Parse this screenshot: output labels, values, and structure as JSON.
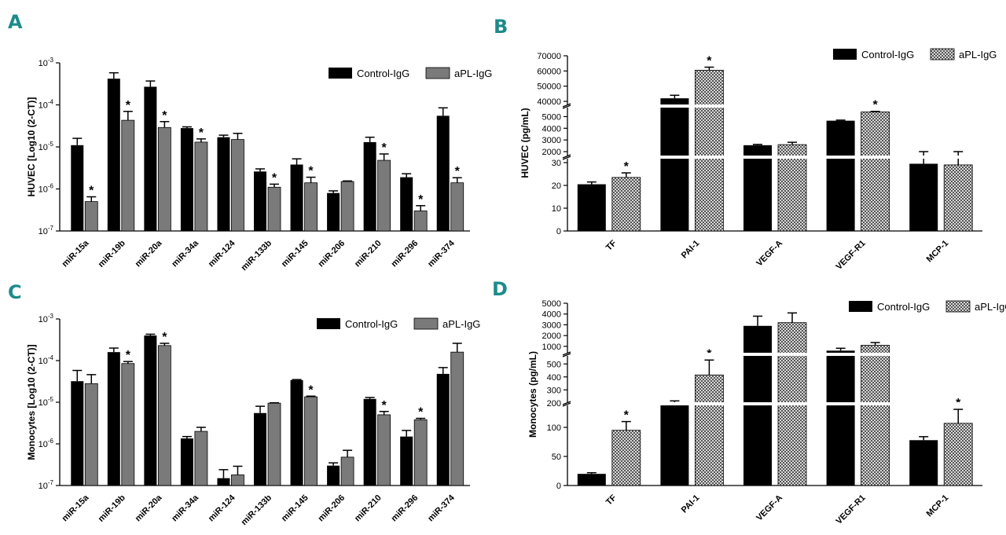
{
  "legend": {
    "control": "Control-IgG",
    "apl": "aPL-IgG"
  },
  "colors": {
    "control": "#000000",
    "apl_log": "#7a7a7a",
    "apl_pattern_bg": "#d8d8d8",
    "letter": "#1e8b8b"
  },
  "panels": {
    "A": {
      "letter": "A",
      "ylabel": "HUVEC [Log10 (2-CT)]"
    },
    "B": {
      "letter": "B",
      "ylabel": "HUVEC (pg/mL)"
    },
    "C": {
      "letter": "C",
      "ylabel": "Monocytes [Log10 (2-CT)]"
    },
    "D": {
      "letter": "D",
      "ylabel": "Monocytes (pg/mL)"
    }
  },
  "chart_data": [
    {
      "id": "A",
      "type": "bar",
      "scale": "log",
      "ylabel": "HUVEC [Log10 (2^-CT)]",
      "ylim": [
        1e-07,
        0.001
      ],
      "yticks": [
        "10-7",
        "10-6",
        "10-5",
        "10-4",
        "10-3"
      ],
      "categories": [
        "miR-15a",
        "miR-19b",
        "miR-20a",
        "miR-34a",
        "miR-124",
        "miR-133b",
        "miR-145",
        "miR-206",
        "miR-210",
        "miR-296",
        "miR-374"
      ],
      "series": [
        {
          "name": "Control-IgG",
          "values": [
            1.1e-05,
            0.00042,
            0.00027,
            2.8e-05,
            1.7e-05,
            2.6e-06,
            3.8e-06,
            8e-07,
            1.3e-05,
            1.9e-06,
            5.5e-05
          ],
          "errors": [
            1.6e-05,
            0.00058,
            0.00037,
            3e-05,
            1.9e-05,
            3e-06,
            5.2e-06,
            9e-07,
            1.7e-05,
            2.3e-06,
            8.5e-05
          ]
        },
        {
          "name": "aPL-IgG",
          "values": [
            5e-07,
            4.3e-05,
            2.9e-05,
            1.3e-05,
            1.5e-05,
            1.1e-06,
            1.4e-06,
            1.5e-06,
            4.8e-06,
            3e-07,
            1.4e-06
          ],
          "errors": [
            6.5e-07,
            7e-05,
            4e-05,
            1.55e-05,
            2.1e-05,
            1.3e-06,
            1.9e-06,
            1.55e-06,
            6.8e-06,
            4e-07,
            1.85e-06
          ],
          "significant": [
            true,
            true,
            true,
            true,
            false,
            true,
            true,
            false,
            true,
            true,
            true
          ]
        }
      ]
    },
    {
      "id": "B",
      "type": "bar",
      "scale": "broken-linear",
      "ylabel": "HUVEC (pg/mL)",
      "segments": [
        {
          "range": [
            0,
            30
          ],
          "ticks": [
            0,
            10,
            20,
            30
          ]
        },
        {
          "range": [
            2000,
            5500
          ],
          "ticks": [
            2000,
            3000,
            4000,
            5000
          ]
        },
        {
          "range": [
            40000,
            70000
          ],
          "ticks": [
            40000,
            50000,
            60000,
            70000
          ]
        }
      ],
      "categories": [
        "TF",
        "PAI-1",
        "VEGF-A",
        "VEGF-R1",
        "MCP-1"
      ],
      "series": [
        {
          "name": "Control-IgG",
          "values": [
            20.5,
            42000,
            2550,
            4650,
            29.5
          ],
          "errors": [
            21.5,
            44000,
            2620,
            4700,
            32
          ]
        },
        {
          "name": "aPL-IgG",
          "values": [
            23.5,
            60500,
            2600,
            5400,
            29
          ],
          "errors": [
            25.5,
            62500,
            2800,
            5450,
            31.5
          ],
          "significant": [
            true,
            true,
            false,
            true,
            false
          ]
        }
      ]
    },
    {
      "id": "C",
      "type": "bar",
      "scale": "log",
      "ylabel": "Monocytes [Log10 (2^-CT)]",
      "ylim": [
        1e-07,
        0.001
      ],
      "yticks": [
        "10-7",
        "10-6",
        "10-5",
        "10-4",
        "10-3"
      ],
      "categories": [
        "miR-15a",
        "miR-19b",
        "miR-20a",
        "miR-34a",
        "miR-124",
        "miR-133b",
        "miR-145",
        "miR-206",
        "miR-210",
        "miR-296",
        "miR-374"
      ],
      "series": [
        {
          "name": "Control-IgG",
          "values": [
            3.2e-05,
            0.00016,
            0.0004,
            1.35e-06,
            1.5e-07,
            5.5e-06,
            3.4e-05,
            3e-07,
            1.2e-05,
            1.5e-06,
            4.8e-05
          ],
          "errors": [
            5.8e-05,
            0.0002,
            0.00043,
            1.5e-06,
            2.4e-07,
            8e-06,
            3.5e-05,
            3.5e-07,
            1.3e-05,
            2.1e-06,
            6.8e-05
          ]
        },
        {
          "name": "aPL-IgG",
          "values": [
            2.8e-05,
            8.5e-05,
            0.00023,
            2e-06,
            1.8e-07,
            9.5e-06,
            1.35e-05,
            4.8e-07,
            5e-06,
            3.8e-06,
            0.00016
          ],
          "errors": [
            4.6e-05,
            9.5e-05,
            0.00026,
            2.5e-06,
            2.9e-07,
            9.7e-06,
            1.4e-05,
            7e-07,
            6e-06,
            4.1e-06,
            0.00026
          ],
          "significant": [
            false,
            true,
            true,
            false,
            false,
            false,
            true,
            false,
            true,
            true,
            false
          ]
        }
      ]
    },
    {
      "id": "D",
      "type": "bar",
      "scale": "broken-linear",
      "ylabel": "Monocytes (pg/mL)",
      "segments": [
        {
          "range": [
            0,
            150
          ],
          "ticks": [
            0,
            50,
            100
          ]
        },
        {
          "range": [
            150,
            550
          ],
          "ticks": [
            200,
            300,
            400,
            500
          ]
        },
        {
          "range": [
            550,
            5000
          ],
          "ticks": [
            1000,
            2000,
            3000,
            4000,
            5000
          ]
        }
      ],
      "categories": [
        "TF",
        "PAI-1",
        "VEGF-A",
        "VEGF-R1",
        "MCP-1"
      ],
      "series": [
        {
          "name": "Control-IgG",
          "values": [
            20,
            200,
            2900,
            600,
            78
          ],
          "errors": [
            22,
            215,
            3800,
            820,
            84
          ]
        },
        {
          "name": "aPL-IgG",
          "values": [
            95,
            415,
            3200,
            1100,
            107
          ],
          "errors": [
            110,
            530,
            4100,
            1350,
            131
          ],
          "significant": [
            true,
            true,
            false,
            false,
            true
          ]
        }
      ]
    }
  ]
}
